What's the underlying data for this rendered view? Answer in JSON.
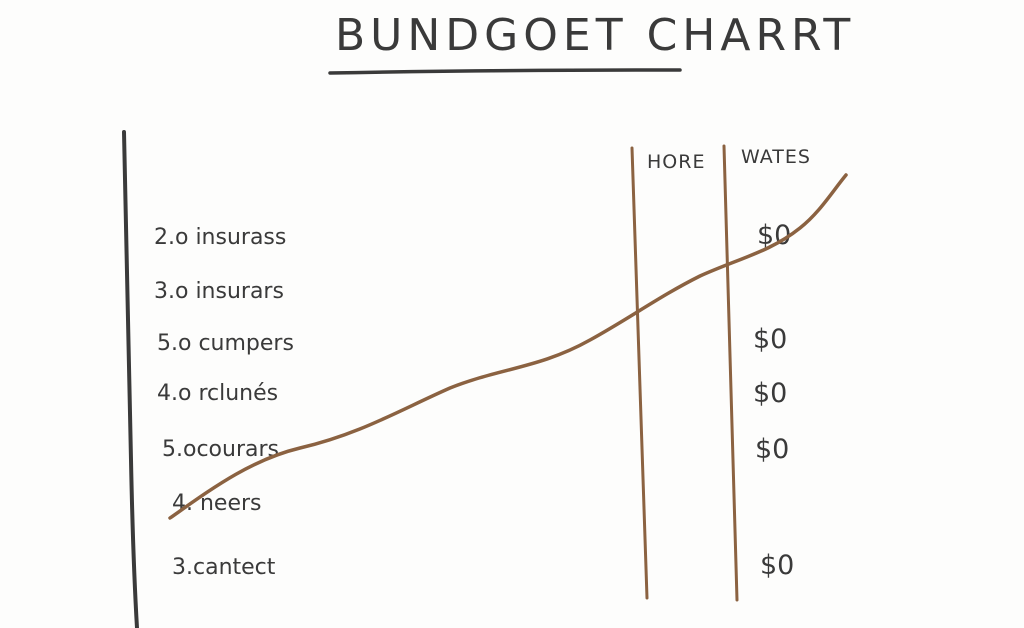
{
  "title": "BUNDGOET CHARRT",
  "chart_data": {
    "type": "line",
    "title": "BUNDGOET CHARRT",
    "column_headers": [
      "HORE",
      "WATES"
    ],
    "rows": [
      {
        "label": "2.o insurass",
        "value": "$0"
      },
      {
        "label": "3.o insurars",
        "value": ""
      },
      {
        "label": "5.o cumpers",
        "value": "$0"
      },
      {
        "label": "4.o rclunés",
        "value": "$0"
      },
      {
        "label": "5.ocourars",
        "value": "$0"
      },
      {
        "label": "4. neers",
        "value": ""
      },
      {
        "label": "3.cantect",
        "value": "$0"
      }
    ],
    "grid": false,
    "legend": "none"
  },
  "colors": {
    "ink": "#3a3a3a",
    "trend_line": "#8b6241",
    "column_rules": "#8b6241",
    "background": "#fdfdfc"
  }
}
